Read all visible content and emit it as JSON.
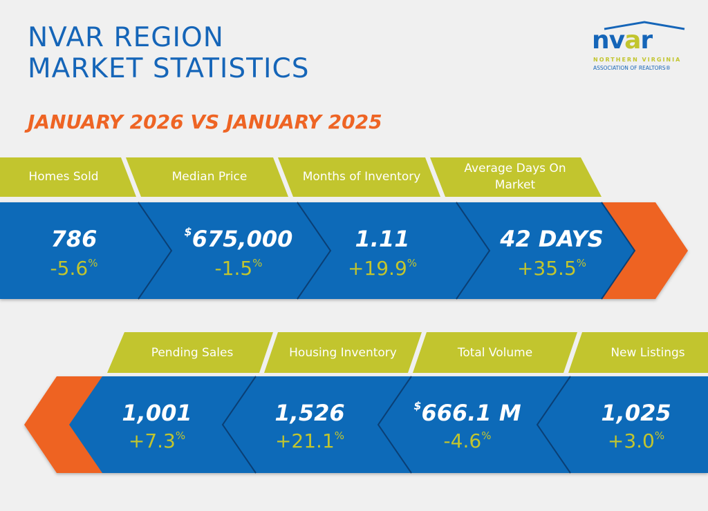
{
  "header": {
    "title_line1": "NVAR REGION",
    "title_line2": "MARKET STATISTICS",
    "subtitle": "JANUARY 2026 VS JANUARY 2025"
  },
  "logo": {
    "word": "nvar",
    "line1": "NORTHERN VIRGINIA",
    "line2": "ASSOCIATION OF REALTORS®"
  },
  "colors": {
    "blue": "#0d6ab8",
    "green": "#c2c52e",
    "orange": "#ee6424",
    "background": "#f0f0f0"
  },
  "top_stats": [
    {
      "label": "Homes Sold",
      "prefix": "",
      "value": "786",
      "change": "-5.6",
      "unit": "%"
    },
    {
      "label": "Median Price",
      "prefix": "$",
      "value": "675,000",
      "change": "-1.5",
      "unit": "%"
    },
    {
      "label": "Months of Inventory",
      "prefix": "",
      "value": "1.11",
      "change": "+19.9",
      "unit": "%"
    },
    {
      "label": "Average Days On Market",
      "prefix": "",
      "value": "42 DAYS",
      "change": "+35.5",
      "unit": "%"
    }
  ],
  "bottom_stats": [
    {
      "label": "Pending Sales",
      "prefix": "",
      "value": "1,001",
      "change": "+7.3",
      "unit": "%"
    },
    {
      "label": "Housing Inventory",
      "prefix": "",
      "value": "1,526",
      "change": "+21.1",
      "unit": "%"
    },
    {
      "label": "Total Volume",
      "prefix": "$",
      "value": "666.1 M",
      "change": "-4.6",
      "unit": "%"
    },
    {
      "label": "New Listings",
      "prefix": "",
      "value": "1,025",
      "change": "+3.0",
      "unit": "%"
    }
  ]
}
